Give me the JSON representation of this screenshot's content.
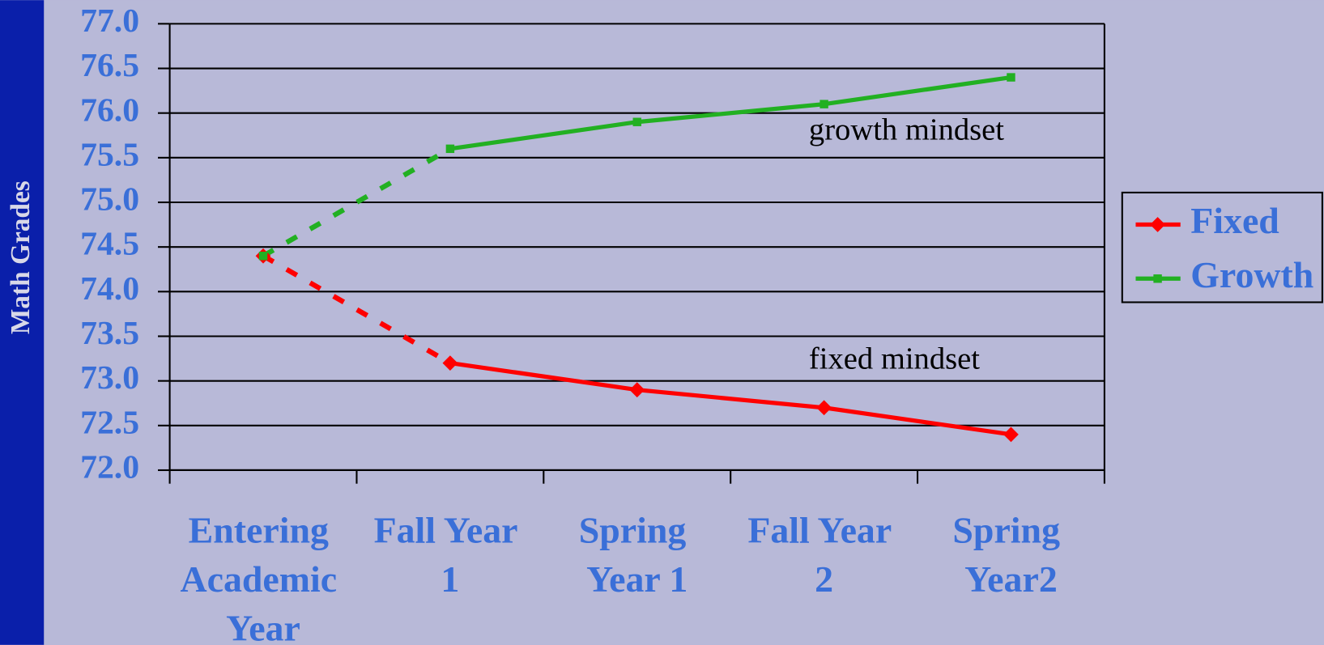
{
  "chart_data": {
    "type": "line",
    "y_label": "Math Grades",
    "categories": [
      "Entering Academic Year",
      "Fall Year 1",
      "Spring Year 1",
      "Fall Year 2",
      "Spring Year2"
    ],
    "series": [
      {
        "name": "Fixed",
        "color": "#ff0000",
        "marker": "diamond",
        "values": [
          74.4,
          73.2,
          72.9,
          72.7,
          72.4
        ]
      },
      {
        "name": "Growth",
        "color": "#22b022",
        "marker": "square",
        "values": [
          74.4,
          75.6,
          75.9,
          76.1,
          76.4
        ]
      }
    ],
    "annotations": [
      "growth mindset",
      "fixed mindset"
    ],
    "ylim": [
      72,
      77
    ],
    "yticks": [
      {
        "value": 72,
        "label": "72.0"
      },
      {
        "value": 72.5,
        "label": "72.5"
      },
      {
        "value": 73,
        "label": "73.0"
      },
      {
        "value": 73.5,
        "label": "73.5"
      },
      {
        "value": 74,
        "label": "74.0"
      },
      {
        "value": 74.5,
        "label": "74.5"
      },
      {
        "value": 75,
        "label": "75.0"
      },
      {
        "value": 75.5,
        "label": "75.5"
      },
      {
        "value": 76,
        "label": "76.0"
      },
      {
        "value": 76.5,
        "label": "76.5"
      },
      {
        "value": 77,
        "label": "77.0"
      }
    ],
    "grid": true,
    "legend": "right"
  }
}
